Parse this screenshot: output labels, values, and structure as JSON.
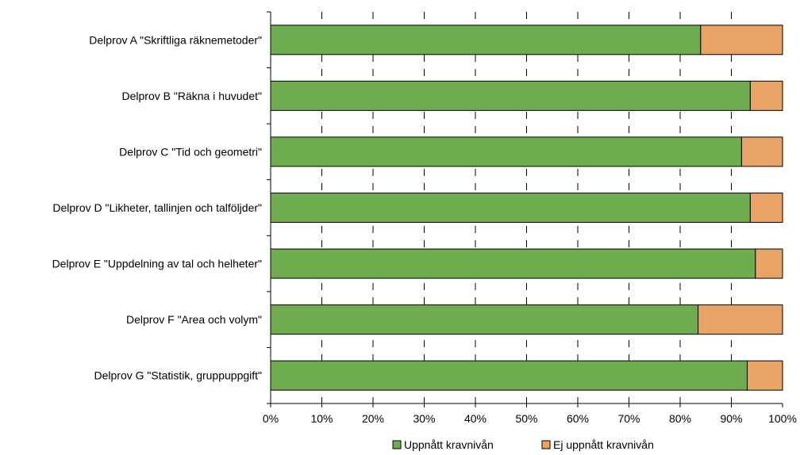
{
  "chart_data": {
    "type": "bar",
    "orientation": "horizontal",
    "stacked": true,
    "categories": [
      "Delprov A \"Skriftliga räknemetoder\"",
      "Delprov B \"Räkna i huvudet\"",
      "Delprov C \"Tid och geometri\"",
      "Delprov D \"Likheter, tallinjen och talföljder\"",
      "Delprov E \"Uppdelning av tal och helheter\"",
      "Delprov F \"Area och volym\"",
      "Delprov G \"Statistik, gruppuppgift\""
    ],
    "series": [
      {
        "name": "Uppnått kravnivån",
        "color": "#6fac4f",
        "values": [
          84,
          93.7,
          92,
          93.7,
          94.7,
          83.5,
          93.1
        ]
      },
      {
        "name": "Ej uppnått kravnivån",
        "color": "#e8a365",
        "values": [
          16,
          6.3,
          8,
          6.3,
          5.3,
          16.5,
          6.9
        ]
      }
    ],
    "xlim": [
      0,
      100
    ],
    "x_ticks": [
      "0%",
      "10%",
      "20%",
      "30%",
      "40%",
      "50%",
      "60%",
      "70%",
      "80%",
      "90%",
      "100%"
    ],
    "grid": "dashed vertical",
    "legend": "bottom"
  }
}
